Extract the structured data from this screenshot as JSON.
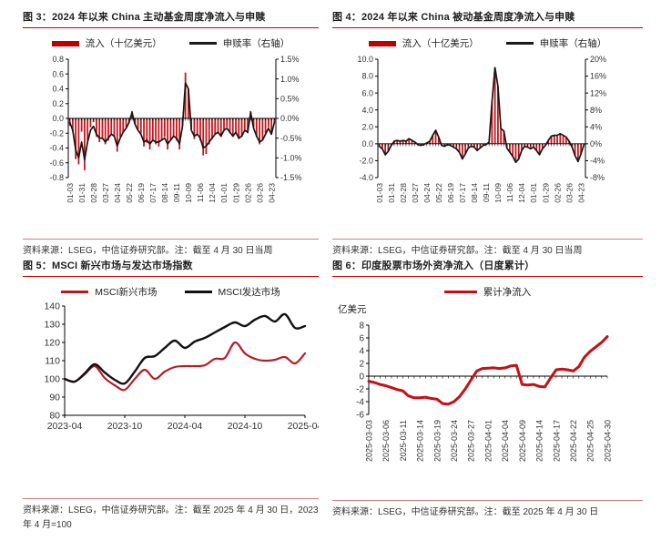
{
  "chart_data": [
    {
      "id": "f3",
      "type": "bar-line",
      "title": "图 3：2024 年以来 China 主动基金周度净流入与申赎",
      "source": "资料来源：LSEG，中信证券研究部。注：截至 4 月 30 日当周",
      "legend": [
        {
          "label": "流入（十亿美元）",
          "swatch": "bar",
          "color": "#c00000"
        },
        {
          "label": "申赎率（右轴）",
          "swatch": "line",
          "color": "#1a1a1a"
        }
      ],
      "x_labels": [
        "01-03",
        "01-31",
        "02-28",
        "03-27",
        "04-24",
        "05-22",
        "06-19",
        "07-17",
        "08-14",
        "09-11",
        "10-09",
        "11-06",
        "12-04",
        "01-01",
        "01-29",
        "02-26",
        "03-26",
        "04-23"
      ],
      "label_every": 4,
      "rotate_x": true,
      "left_axis": {
        "min": -0.8,
        "max": 0.8,
        "step": 0.2,
        "decimals": 1,
        "suffix": ""
      },
      "right_axis": {
        "min": -1.5,
        "max": 1.5,
        "step": 0.5,
        "decimals": 1,
        "suffix": "%"
      },
      "bars": {
        "name": "流入（十亿美元）",
        "axis": "left",
        "color": "#c3161c",
        "values": [
          -0.1,
          -0.18,
          -0.55,
          -0.62,
          -0.18,
          -0.7,
          -0.3,
          -0.12,
          -0.05,
          -0.25,
          -0.32,
          -0.28,
          -0.35,
          -0.3,
          -0.22,
          -0.25,
          -0.45,
          -0.25,
          -0.18,
          -0.12,
          -0.05,
          0.1,
          -0.08,
          -0.15,
          -0.2,
          -0.38,
          -0.33,
          -0.42,
          -0.3,
          -0.35,
          -0.38,
          -0.3,
          -0.25,
          -0.42,
          -0.3,
          -0.25,
          -0.3,
          -0.42,
          -0.1,
          0.62,
          0.4,
          -0.15,
          -0.28,
          -0.22,
          -0.3,
          -0.5,
          -0.48,
          -0.35,
          -0.28,
          -0.22,
          -0.18,
          -0.25,
          -0.15,
          -0.12,
          -0.2,
          -0.25,
          -0.18,
          -0.28,
          -0.25,
          -0.15,
          -0.2,
          0.1,
          -0.12,
          -0.25,
          -0.35,
          -0.3,
          -0.2,
          -0.12,
          -0.22,
          -0.05
        ]
      },
      "line": {
        "name": "申赎率（右轴）",
        "axis": "right",
        "color": "#1a1414",
        "width": 1.7,
        "values": [
          -0.1,
          -0.3,
          -0.8,
          -1.0,
          -0.6,
          -1.05,
          -0.6,
          -0.3,
          -0.2,
          -0.4,
          -0.5,
          -0.5,
          -0.6,
          -0.5,
          -0.4,
          -0.45,
          -0.7,
          -0.5,
          -0.35,
          -0.25,
          -0.1,
          0.15,
          -0.15,
          -0.3,
          -0.4,
          -0.6,
          -0.55,
          -0.65,
          -0.55,
          -0.6,
          -0.6,
          -0.55,
          -0.5,
          -0.65,
          -0.55,
          -0.45,
          -0.5,
          -0.65,
          -0.2,
          0.9,
          0.75,
          -0.3,
          -0.45,
          -0.4,
          -0.5,
          -0.75,
          -0.7,
          -0.6,
          -0.5,
          -0.4,
          -0.35,
          -0.45,
          -0.3,
          -0.25,
          -0.35,
          -0.45,
          -0.35,
          -0.5,
          -0.45,
          -0.3,
          -0.35,
          0.15,
          -0.25,
          -0.45,
          -0.6,
          -0.55,
          -0.4,
          -0.25,
          -0.4,
          -0.1
        ]
      }
    },
    {
      "id": "f4",
      "type": "bar-line",
      "title": "图 4：2024 年以来 China 被动基金周度净流入与申赎",
      "source": "资料来源：LSEG，中信证券研究部。注：截至 4 月 30 日当周",
      "legend": [
        {
          "label": "流入（十亿美元）",
          "swatch": "bar",
          "color": "#c00000"
        },
        {
          "label": "申赎率（右轴）",
          "swatch": "line",
          "color": "#1a1a1a"
        }
      ],
      "x_labels": [
        "01-03",
        "01-31",
        "02-28",
        "03-27",
        "04-24",
        "05-22",
        "06-19",
        "07-17",
        "08-14",
        "09-11",
        "10-09",
        "11-06",
        "12-04",
        "01-01",
        "01-29",
        "02-26",
        "03-26",
        "04-23"
      ],
      "label_every": 4,
      "rotate_x": true,
      "left_axis": {
        "min": -4.0,
        "max": 10.0,
        "step": 2.0,
        "decimals": 1,
        "suffix": ""
      },
      "right_axis": {
        "min": -8,
        "max": 20,
        "step": 4,
        "decimals": 0,
        "suffix": "%"
      },
      "bars": {
        "name": "流入（十亿美元）",
        "axis": "left",
        "color": "#c3161c",
        "values": [
          -0.3,
          -0.6,
          -1.3,
          -0.9,
          -0.2,
          0.3,
          0.4,
          0.3,
          0.4,
          0.3,
          0.6,
          0.4,
          0.2,
          -0.1,
          -0.2,
          -0.1,
          0.1,
          0.3,
          1.0,
          1.6,
          0.8,
          -0.2,
          -0.3,
          -0.1,
          -0.2,
          -0.4,
          -0.6,
          -1.0,
          -1.8,
          -1.2,
          -0.5,
          -0.3,
          -0.4,
          -0.8,
          -0.5,
          -0.2,
          -0.1,
          0.2,
          5.0,
          9.0,
          6.8,
          1.8,
          1.5,
          -0.5,
          -1.0,
          -1.5,
          -2.2,
          -1.8,
          -0.8,
          -0.3,
          -0.4,
          -0.6,
          -0.4,
          -0.8,
          -1.3,
          -0.6,
          -0.2,
          0.4,
          0.9,
          1.0,
          1.0,
          1.2,
          1.0,
          0.8,
          0.3,
          -0.4,
          -1.4,
          -2.1,
          -1.2,
          -0.1
        ]
      },
      "line": {
        "name": "申赎率（右轴）",
        "axis": "right",
        "color": "#1a1414",
        "width": 1.7,
        "values": [
          -0.6,
          -1.2,
          -2.6,
          -1.8,
          -0.4,
          0.6,
          0.8,
          0.6,
          0.8,
          0.6,
          1.2,
          0.8,
          0.4,
          -0.2,
          -0.4,
          -0.2,
          0.2,
          0.6,
          2.0,
          3.2,
          1.6,
          -0.4,
          -0.6,
          -0.2,
          -0.4,
          -0.8,
          -1.2,
          -2.0,
          -3.6,
          -2.4,
          -1.0,
          -0.6,
          -0.8,
          -1.6,
          -1.0,
          -0.4,
          -0.2,
          0.4,
          10.0,
          18.0,
          13.6,
          3.6,
          3.0,
          -1.0,
          -2.0,
          -3.0,
          -4.4,
          -3.6,
          -1.6,
          -0.6,
          -0.8,
          -1.2,
          -0.8,
          -1.6,
          -2.6,
          -1.2,
          -0.4,
          0.8,
          1.8,
          2.0,
          2.0,
          2.4,
          2.0,
          1.6,
          0.6,
          -0.8,
          -2.8,
          -4.2,
          -2.4,
          -0.2
        ]
      }
    },
    {
      "id": "f5",
      "type": "line",
      "title": "图 5：MSCI 新兴市场与发达市场指数",
      "source": "资料来源：LSEG，中信证券研究部。注：截至 2025 年 4 月 30 日，2023 年 4 月=100",
      "legend": [
        {
          "label": "MSCI新兴市场",
          "swatch": "line",
          "color": "#b81c22"
        },
        {
          "label": "MSCI发达市场",
          "swatch": "line",
          "color": "#111111"
        }
      ],
      "x_labels": [
        "2023-04",
        "2023-10",
        "2024-04",
        "2024-10",
        "2025-04"
      ],
      "label_every": 6,
      "rotate_x": false,
      "smooth": true,
      "bottom_axis": true,
      "left_axis": {
        "min": 80,
        "max": 140,
        "step": 10,
        "decimals": 0,
        "suffix": ""
      },
      "series": [
        {
          "name": "MSCI新兴市场",
          "color": "#b81c22",
          "width": 2.2,
          "values": [
            100,
            98.5,
            102.5,
            107,
            100.5,
            96.5,
            94,
            100,
            105,
            100,
            104,
            106.5,
            107,
            107,
            107.5,
            111,
            111.5,
            120,
            114,
            111,
            110,
            110.5,
            112,
            108.5,
            114
          ]
        },
        {
          "name": "MSCI发达市场",
          "color": "#111111",
          "width": 2.4,
          "values": [
            100,
            98.5,
            103,
            108,
            103.5,
            99.5,
            97.5,
            104,
            111.5,
            112.5,
            117,
            121,
            117,
            120.5,
            122.5,
            125.5,
            128.5,
            131,
            129,
            132.5,
            134.5,
            131.5,
            135.5,
            128,
            129
          ]
        }
      ]
    },
    {
      "id": "f6",
      "type": "line",
      "title": "图 6：印度股票市场外资净流入（日度累计）",
      "unit": "亿美元",
      "source": "资料来源：LSEG，中信证券研究部。注：截至 2025 年 4 月 30 日",
      "legend": [
        {
          "label": "累计净流入",
          "swatch": "line-thick",
          "color": "#c70f14"
        }
      ],
      "x_labels": [
        "2025-03-03",
        "2025-03-06",
        "2025-03-11",
        "2025-03-14",
        "2025-03-19",
        "2025-03-24",
        "2025-03-27",
        "2025-04-01",
        "2025-04-04",
        "2025-04-09",
        "2025-04-14",
        "2025-04-17",
        "2025-04-22",
        "2025-04-25",
        "2025-04-30"
      ],
      "label_every": 3,
      "rotate_x": true,
      "zero_line": true,
      "left_axis": {
        "min": -6,
        "max": 8,
        "step": 2,
        "decimals": 0,
        "suffix": ""
      },
      "series": [
        {
          "name": "累计净流入",
          "color": "#c70f14",
          "width": 3,
          "values": [
            -0.8,
            -1.0,
            -1.3,
            -1.5,
            -1.8,
            -2.1,
            -2.3,
            -3.1,
            -3.4,
            -3.4,
            -3.3,
            -3.5,
            -3.6,
            -4.3,
            -4.4,
            -4.0,
            -3.2,
            -2.0,
            -0.6,
            0.8,
            1.2,
            1.25,
            1.3,
            1.2,
            1.3,
            1.6,
            1.7,
            -1.3,
            -1.4,
            -1.3,
            -1.6,
            -1.7,
            -0.3,
            1.0,
            1.1,
            1.0,
            0.8,
            1.5,
            3.0,
            3.9,
            4.6,
            5.3,
            6.2
          ]
        }
      ]
    }
  ]
}
